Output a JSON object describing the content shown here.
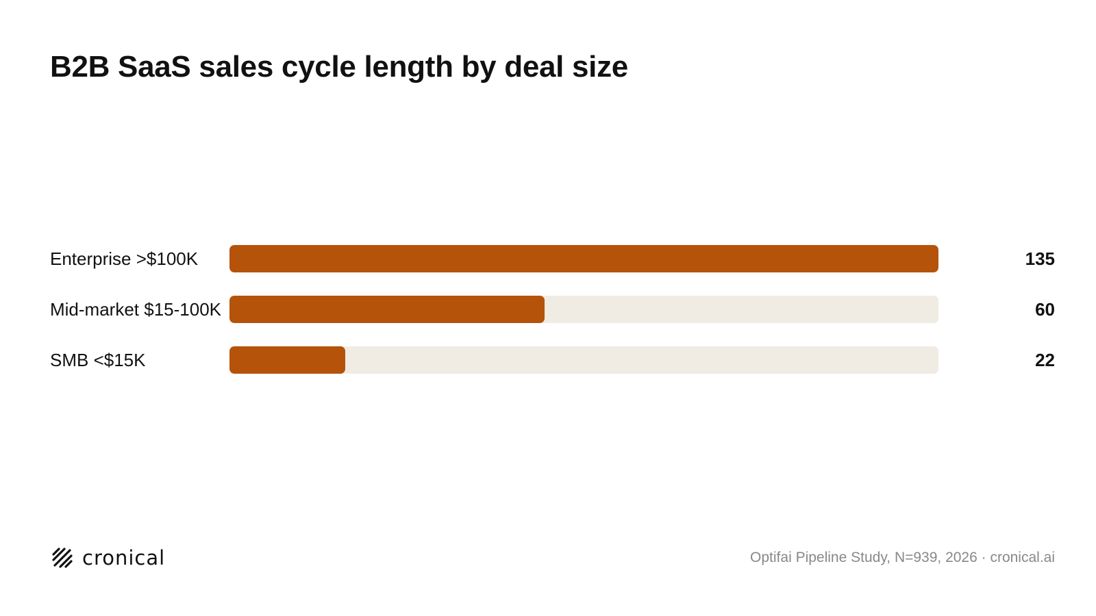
{
  "title": "B2B SaaS sales cycle length by deal size",
  "colors": {
    "bar": "#b5530b",
    "track": "#f0ebe3",
    "text": "#111111",
    "muted": "#888888"
  },
  "chart_data": {
    "type": "bar",
    "orientation": "horizontal",
    "categories": [
      "Enterprise >$100K",
      "Mid-market $15-100K",
      "SMB <$15K"
    ],
    "values": [
      135,
      60,
      22
    ],
    "value_labels": [
      "135",
      "60",
      "22"
    ],
    "xlim": [
      0,
      135
    ]
  },
  "footer": {
    "logo_text": "cronical",
    "logo_icon": "hatch-logo-icon",
    "source": "Optifai Pipeline Study, N=939, 2026 · cronical.ai"
  }
}
